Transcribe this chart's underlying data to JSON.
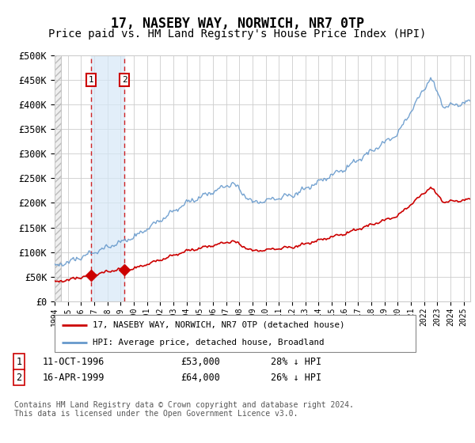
{
  "title": "17, NASEBY WAY, NORWICH, NR7 0TP",
  "subtitle": "Price paid vs. HM Land Registry's House Price Index (HPI)",
  "title_fontsize": 12,
  "subtitle_fontsize": 10,
  "ylabel_values": [
    "£0",
    "£50K",
    "£100K",
    "£150K",
    "£200K",
    "£250K",
    "£300K",
    "£350K",
    "£400K",
    "£450K",
    "£500K"
  ],
  "ytick_values": [
    0,
    50000,
    100000,
    150000,
    200000,
    250000,
    300000,
    350000,
    400000,
    450000,
    500000
  ],
  "ylim": [
    0,
    500000
  ],
  "xlim_start": 1994.0,
  "xlim_end": 2025.5,
  "sale1_date": 1996.78,
  "sale1_price": 53000,
  "sale1_label": "1",
  "sale2_date": 1999.29,
  "sale2_price": 64000,
  "sale2_label": "2",
  "legend_line1": "17, NASEBY WAY, NORWICH, NR7 0TP (detached house)",
  "legend_line2": "HPI: Average price, detached house, Broadland",
  "footnote": "Contains HM Land Registry data © Crown copyright and database right 2024.\nThis data is licensed under the Open Government Licence v3.0.",
  "red_color": "#cc0000",
  "blue_color": "#6699cc",
  "grid_color": "#cccccc",
  "background_color": "#ffffff",
  "hatch_left": true
}
